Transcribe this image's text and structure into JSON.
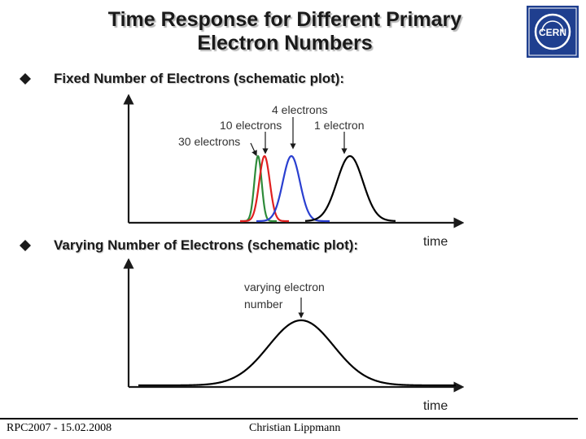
{
  "slide": {
    "title_line1": "Time Response for Different Primary",
    "title_line2": "Electron Numbers"
  },
  "logo": {
    "text": "CERN",
    "icon": "cern-logo"
  },
  "bullets": [
    {
      "text": "Fixed Number of Electrons (schematic plot):",
      "icon": "diamond-bullet-icon"
    },
    {
      "text": "Varying Number of Electrons (schematic plot):",
      "icon": "diamond-bullet-icon"
    }
  ],
  "chart_data": [
    {
      "type": "line",
      "xlabel": "time",
      "series": [
        {
          "name": "30 electrons",
          "color": "#2e8b3a"
        },
        {
          "name": "10 electrons",
          "color": "#e02020"
        },
        {
          "name": "4 electrons",
          "color": "#2a3fd0"
        },
        {
          "name": "1 electron",
          "color": "#000000"
        }
      ],
      "annotations": [
        "4 electrons",
        "10 electrons",
        "1 electron",
        "30 electrons"
      ]
    },
    {
      "type": "line",
      "xlabel": "time",
      "series": [
        {
          "color": "#000000"
        }
      ],
      "annotations": [
        "varying electron",
        "number"
      ]
    }
  ],
  "footer": {
    "left": "RPC2007 - 15.02.2008",
    "center": "Christian Lippmann"
  }
}
